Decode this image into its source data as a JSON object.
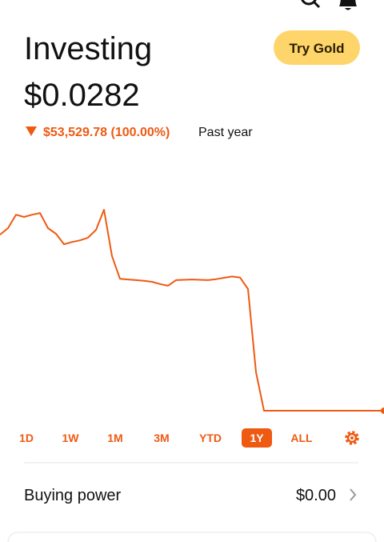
{
  "header": {
    "title": "Investing",
    "value": "$0.0282",
    "change": "$53,529.78 (100.00%)",
    "change_period": "Past year",
    "button": "Try Gold"
  },
  "chart_data": {
    "type": "line",
    "color": "#ee5a12",
    "values": [
      53530,
      55500,
      59600,
      58900,
      59600,
      60100,
      55500,
      53800,
      50600,
      51300,
      51800,
      52600,
      55000,
      61100,
      47000,
      40100,
      39900,
      39700,
      39500,
      39200,
      38500,
      38000,
      39700,
      39800,
      39900,
      39800,
      39700,
      40000,
      40400,
      40800,
      40500,
      37000,
      11700,
      0.0282,
      0.0282,
      0.0282,
      0.0282,
      0.0282,
      0.0282,
      0.0282,
      0.0282,
      0.0282,
      0.0282,
      0.0282,
      0.0282,
      0.0282,
      0.0282,
      0.0282,
      0.0282
    ]
  },
  "range_options": [
    "1D",
    "1W",
    "1M",
    "3M",
    "YTD",
    "1Y",
    "ALL"
  ],
  "selected_range": 5,
  "buying_power": {
    "label": "Buying power",
    "value": "$0.00"
  }
}
